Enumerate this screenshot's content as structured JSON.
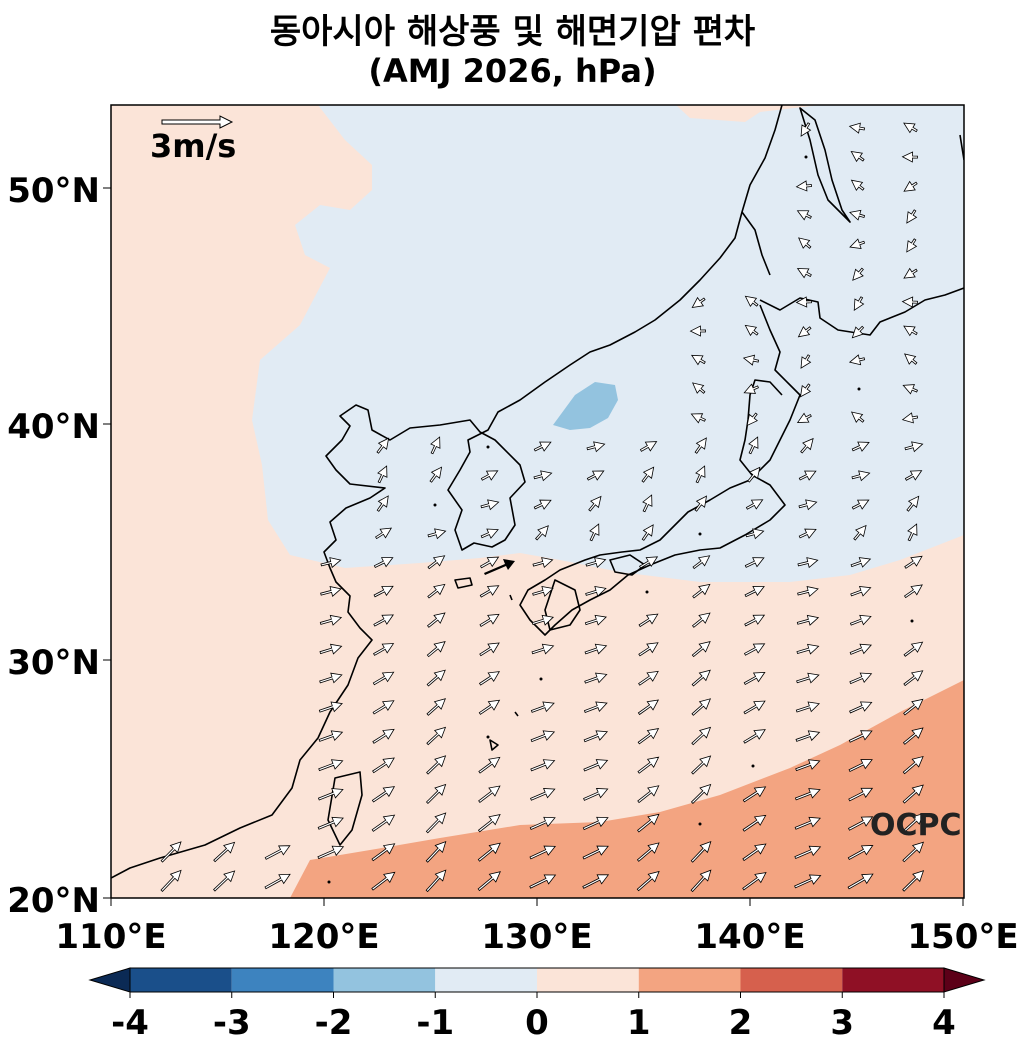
{
  "title": "동아시아 해상풍 및 해면기압 편차",
  "subtitle": "(AMJ 2026, hPa)",
  "reference_vector_label": "3m/s",
  "watermark": "OCPC",
  "lat_ticks": [
    "20°N",
    "30°N",
    "40°N",
    "50°N"
  ],
  "lon_ticks": [
    "110°E",
    "120°E",
    "130°E",
    "140°E",
    "150°E"
  ],
  "colorbar": {
    "ticks": [
      "-4",
      "-3",
      "-2",
      "-1",
      "0",
      "1",
      "2",
      "3",
      "4"
    ],
    "colors": [
      "#1a4f8a",
      "#3d83bf",
      "#93c3df",
      "#e1ebf4",
      "#fbe4d8",
      "#f3a481",
      "#d6604d",
      "#8f1025"
    ],
    "under_color": "#0b2a55",
    "over_color": "#5c0018"
  },
  "map_extent": {
    "lon": [
      110,
      150
    ],
    "lat": [
      20,
      53.5
    ]
  }
}
